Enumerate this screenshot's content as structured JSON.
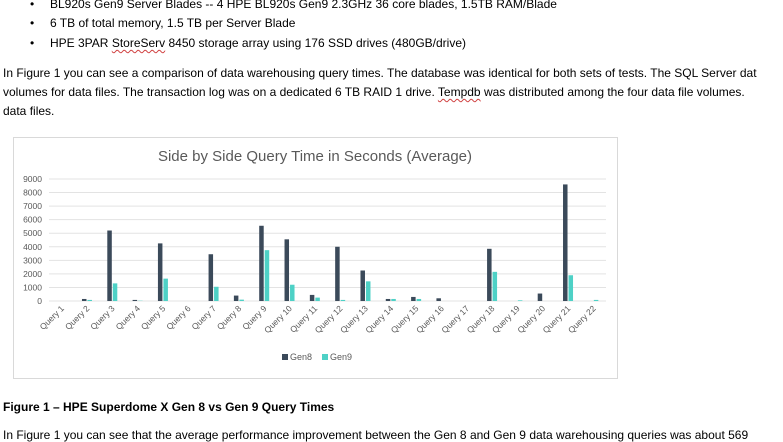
{
  "bullets": [
    {
      "text": "BL920s Gen9 Server Blades -- 4 HPE BL920s Gen9 2.3GHz 36 core blades, 1.5TB RAM/Blade"
    },
    {
      "text": "6 TB of total memory, 1.5 TB per Server Blade"
    },
    {
      "text_pre": "HPE 3PAR ",
      "text_squiggle": "StoreServ",
      "text_post": " 8450 storage array using 176 SSD drives (480GB/drive)"
    }
  ],
  "intro": {
    "line1": "In Figure 1 you can see a comparison of data warehousing query times. The database was identical for both sets of tests. The SQL Server dat",
    "line2_pre": "volumes for data files. The transaction log was on a dedicated 6 TB RAID 1 drive. ",
    "line2_squiggle": "Tempdb",
    "line2_post": " was distributed among the four data file volumes.",
    "line3": "data files."
  },
  "chart_data": {
    "type": "bar",
    "title": "Side by Side Query Time in Seconds (Average)",
    "categories": [
      "Query 1",
      "Query 2",
      "Query 3",
      "Query 4",
      "Query 5",
      "Query 6",
      "Query 7",
      "Query 8",
      "Query 9",
      "Query 10",
      "Query 11",
      "Query 12",
      "Query 13",
      "Query 14",
      "Query 15",
      "Query 16",
      "Query 17",
      "Query 18",
      "Query 19",
      "Query 20",
      "Query 21",
      "Query 22"
    ],
    "series": [
      {
        "name": "Gen8",
        "color": "#3b4a5a",
        "values": [
          0,
          150,
          5200,
          80,
          4250,
          0,
          3450,
          400,
          5550,
          4550,
          450,
          4000,
          2250,
          150,
          300,
          200,
          0,
          3850,
          0,
          550,
          8600,
          0
        ]
      },
      {
        "name": "Gen9",
        "color": "#4ed1c6",
        "values": [
          0,
          80,
          1300,
          20,
          1650,
          0,
          1050,
          100,
          3750,
          1200,
          250,
          80,
          1450,
          150,
          150,
          0,
          0,
          2150,
          50,
          0,
          1900,
          80
        ]
      }
    ],
    "yticks": [
      0,
      1000,
      2000,
      3000,
      4000,
      5000,
      6000,
      7000,
      8000,
      9000
    ],
    "ylim": [
      0,
      9000
    ],
    "xlabel": "",
    "ylabel": "",
    "legend": "bottom-center",
    "grid": true
  },
  "caption": "Figure 1 – HPE Superdome X Gen 8 vs Gen 9 Query Times",
  "bottom_para": "In Figure 1 you can see that the average performance improvement between the Gen 8 and Gen 9 data warehousing queries was about 569"
}
